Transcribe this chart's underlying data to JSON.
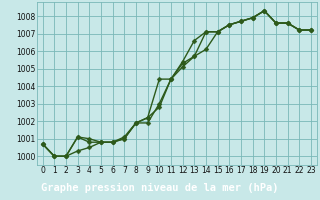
{
  "xlabel": "Graphe pression niveau de la mer (hPa)",
  "bg_color": "#c8e8e8",
  "plot_bg_color": "#c8e8e8",
  "label_bar_color": "#4aaa88",
  "grid_color": "#7ab8b8",
  "line_color": "#2d5a1b",
  "hours": [
    0,
    1,
    2,
    3,
    4,
    5,
    6,
    7,
    8,
    9,
    10,
    11,
    12,
    13,
    14,
    15,
    16,
    17,
    18,
    19,
    20,
    21,
    22,
    23
  ],
  "series1": [
    1000.7,
    1000.0,
    1000.0,
    1000.3,
    1000.5,
    1000.8,
    1000.8,
    1001.0,
    1001.9,
    1002.2,
    1002.8,
    1004.4,
    1005.3,
    1005.7,
    1006.1,
    1007.1,
    1007.5,
    1007.7,
    1007.9,
    1008.3,
    1007.6,
    1007.6,
    1007.2,
    1007.2
  ],
  "series2": [
    1000.7,
    1000.0,
    1000.0,
    1001.1,
    1001.0,
    1000.8,
    1000.8,
    1001.1,
    1001.9,
    1002.2,
    1004.4,
    1004.4,
    1005.4,
    1006.6,
    1007.1,
    1007.1,
    1007.5,
    1007.7,
    1007.9,
    1008.3,
    1007.6,
    1007.6,
    1007.2,
    1007.2
  ],
  "series3": [
    1000.7,
    1000.0,
    1000.0,
    1001.1,
    1000.8,
    1000.8,
    1000.8,
    1001.0,
    1001.9,
    1001.9,
    1003.0,
    1004.4,
    1005.1,
    1005.7,
    1007.1,
    1007.1,
    1007.5,
    1007.7,
    1007.9,
    1008.3,
    1007.6,
    1007.6,
    1007.2,
    1007.2
  ],
  "ylim": [
    999.5,
    1008.8
  ],
  "yticks": [
    1000,
    1001,
    1002,
    1003,
    1004,
    1005,
    1006,
    1007,
    1008
  ],
  "markersize": 2.5,
  "linewidth": 1.0,
  "tick_fontsize": 5.5,
  "xlabel_fontsize": 7.5
}
